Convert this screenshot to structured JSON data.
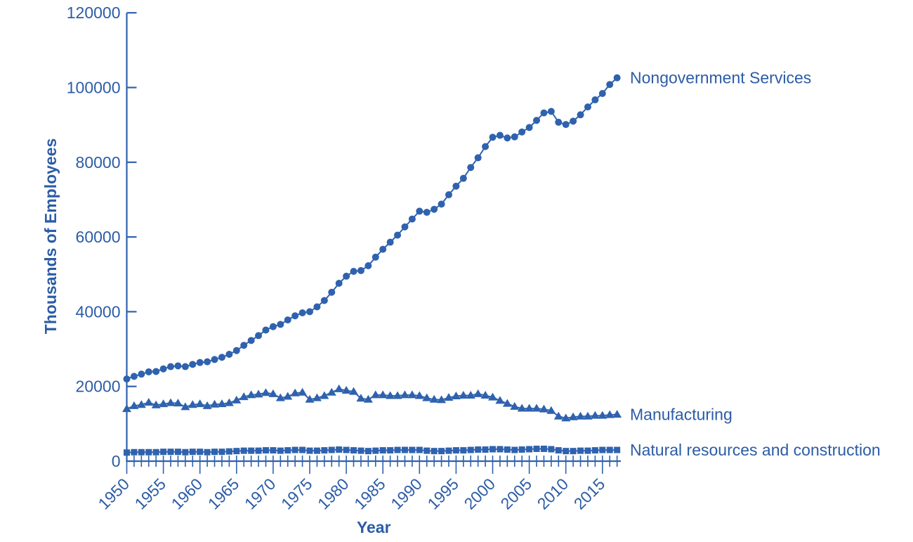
{
  "page": {
    "background": "#ffffff"
  },
  "chart_data": {
    "type": "line",
    "title": "",
    "xlabel": "Year",
    "ylabel": "Thousands of Employees",
    "xlim": [
      1950,
      2017
    ],
    "ylim": [
      0,
      120000
    ],
    "grid": false,
    "legend_position": "labels-at-line-ends",
    "accent_color": "#2f62ae",
    "text_color": "#2c5ca6",
    "y_ticks": [
      0,
      20000,
      40000,
      60000,
      80000,
      100000,
      120000
    ],
    "y_tick_labels": [
      "0",
      "20000",
      "40000",
      "60000",
      "80000",
      "100000",
      "120000"
    ],
    "x_major_ticks": [
      1950,
      1955,
      1960,
      1965,
      1970,
      1975,
      1980,
      1985,
      1990,
      1995,
      2000,
      2005,
      2010,
      2015
    ],
    "x": [
      1950,
      1951,
      1952,
      1953,
      1954,
      1955,
      1956,
      1957,
      1958,
      1959,
      1960,
      1961,
      1962,
      1963,
      1964,
      1965,
      1966,
      1967,
      1968,
      1969,
      1970,
      1971,
      1972,
      1973,
      1974,
      1975,
      1976,
      1977,
      1978,
      1979,
      1980,
      1981,
      1982,
      1983,
      1984,
      1985,
      1986,
      1987,
      1988,
      1989,
      1990,
      1991,
      1992,
      1993,
      1994,
      1995,
      1996,
      1997,
      1998,
      1999,
      2000,
      2001,
      2002,
      2003,
      2004,
      2005,
      2006,
      2007,
      2008,
      2009,
      2010,
      2011,
      2012,
      2013,
      2014,
      2015,
      2016,
      2017
    ],
    "series": [
      {
        "name": "Nongovernment Services",
        "marker": "circle",
        "values": [
          22000,
          22700,
          23300,
          23900,
          24000,
          24700,
          25300,
          25500,
          25300,
          25900,
          26400,
          26600,
          27200,
          27800,
          28600,
          29600,
          31000,
          32300,
          33600,
          35100,
          36000,
          36600,
          37800,
          38900,
          39700,
          40000,
          41300,
          43000,
          45200,
          47600,
          49500,
          50800,
          51000,
          52300,
          54600,
          56700,
          58600,
          60500,
          62700,
          64800,
          66900,
          66600,
          67400,
          68800,
          71300,
          73600,
          75700,
          78600,
          81200,
          84200,
          86700,
          87200,
          86500,
          86800,
          88100,
          89300,
          91200,
          93200,
          93600,
          90700,
          90100,
          91000,
          92700,
          94800,
          96700,
          98400,
          100800,
          102600
        ]
      },
      {
        "name": "Manufacturing",
        "marker": "triangle",
        "values": [
          14000,
          14800,
          15100,
          15700,
          15000,
          15300,
          15600,
          15500,
          14500,
          15100,
          15300,
          14800,
          15200,
          15300,
          15600,
          16300,
          17200,
          17700,
          17900,
          18300,
          18000,
          16900,
          17300,
          18200,
          18400,
          16500,
          16900,
          17500,
          18400,
          19300,
          18900,
          18600,
          16800,
          16500,
          17700,
          17700,
          17500,
          17500,
          17700,
          17700,
          17500,
          16900,
          16500,
          16400,
          17000,
          17400,
          17600,
          17600,
          18000,
          17600,
          17100,
          16200,
          15400,
          14600,
          14100,
          14100,
          14100,
          13900,
          13500,
          12000,
          11500,
          11800,
          12000,
          12000,
          12200,
          12200,
          12400,
          12500
        ]
      },
      {
        "name": "Natural resources and construction",
        "marker": "square",
        "values": [
          2300,
          2400,
          2400,
          2400,
          2400,
          2500,
          2500,
          2500,
          2400,
          2500,
          2500,
          2400,
          2500,
          2500,
          2600,
          2700,
          2800,
          2800,
          2800,
          2900,
          2900,
          2800,
          2900,
          3000,
          3000,
          2800,
          2800,
          2900,
          3000,
          3100,
          3000,
          2900,
          2800,
          2700,
          2800,
          2900,
          2900,
          3000,
          3000,
          3000,
          3000,
          2800,
          2700,
          2700,
          2800,
          2900,
          2900,
          3000,
          3100,
          3100,
          3200,
          3200,
          3100,
          3000,
          3100,
          3200,
          3300,
          3300,
          3200,
          2900,
          2700,
          2700,
          2800,
          2800,
          2900,
          3000,
          3000,
          3000
        ]
      }
    ]
  }
}
